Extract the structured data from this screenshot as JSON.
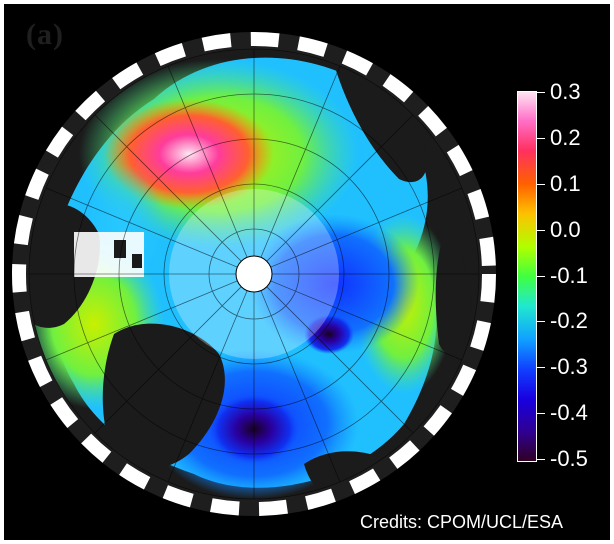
{
  "panel_label": "(a)",
  "credits": "Credits: CPOM/UCL/ESA",
  "colorbar": {
    "ticks": [
      "0.3",
      "0.2",
      "0.1",
      "0.0",
      "-0.1",
      "-0.2",
      "-0.3",
      "-0.4",
      "-0.5"
    ],
    "min": -0.5,
    "max": 0.3,
    "colors": [
      "#2a0030",
      "#1a00a0",
      "#1020ff",
      "#1090ff",
      "#20d8f0",
      "#30f0a0",
      "#60ff20",
      "#c8ff00",
      "#ffd000",
      "#ff7000",
      "#ff2020",
      "#ff3090",
      "#ff80d0",
      "#ffd8f0"
    ]
  }
}
